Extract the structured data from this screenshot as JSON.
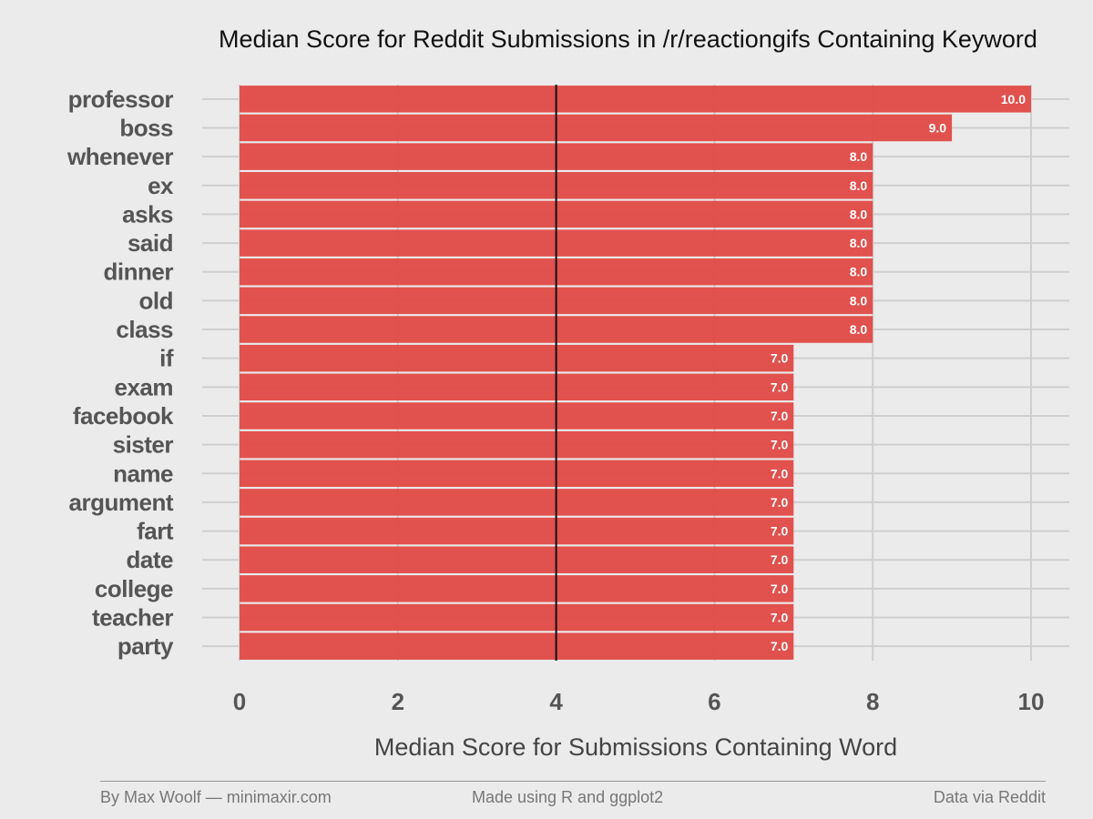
{
  "chart_data": {
    "type": "bar",
    "orientation": "horizontal",
    "title": "Median Score for Reddit Submissions in /r/reactiongifs Containing Keyword",
    "xlabel": "Median Score for Submissions Containing Word",
    "ylabel": "",
    "categories": [
      "professor",
      "boss",
      "whenever",
      "ex",
      "asks",
      "said",
      "dinner",
      "old",
      "class",
      "if",
      "exam",
      "facebook",
      "sister",
      "name",
      "argument",
      "fart",
      "date",
      "college",
      "teacher",
      "party"
    ],
    "values": [
      10.0,
      9.0,
      8.0,
      8.0,
      8.0,
      8.0,
      8.0,
      8.0,
      8.0,
      7.0,
      7.0,
      7.0,
      7.0,
      7.0,
      7.0,
      7.0,
      7.0,
      7.0,
      7.0,
      7.0
    ],
    "value_labels": [
      "10.0",
      "9.0",
      "8.0",
      "8.0",
      "8.0",
      "8.0",
      "8.0",
      "8.0",
      "8.0",
      "7.0",
      "7.0",
      "7.0",
      "7.0",
      "7.0",
      "7.0",
      "7.0",
      "7.0",
      "7.0",
      "7.0",
      "7.0"
    ],
    "xlim": [
      0,
      10
    ],
    "xticks": [
      0,
      2,
      4,
      6,
      8,
      10
    ],
    "reference_line": 4,
    "grid": true,
    "bar_color": "#e04b47",
    "reference_line_color": "#111111"
  },
  "footer": {
    "left": "By Max Woolf — minimaxir.com",
    "center": "Made using R and ggplot2",
    "right": "Data via Reddit"
  }
}
